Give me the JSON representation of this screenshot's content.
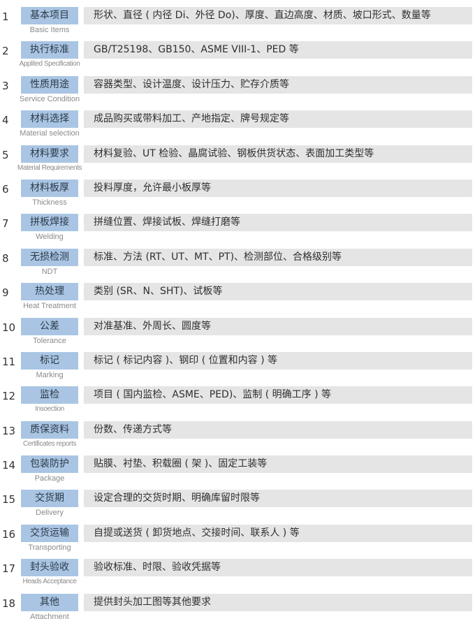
{
  "items": [
    {
      "num": "1",
      "label": "基本项目",
      "en": "Basic Items",
      "desc": "形状、直径 ( 内径 Di、外径 Do)、厚度、直边高度、材质、坡口形式、数量等"
    },
    {
      "num": "2",
      "label": "执行标准",
      "en": "Applited Specification",
      "desc": "GB/T25198、GB150、ASME VIII-1、PED 等"
    },
    {
      "num": "3",
      "label": "性质用途",
      "en": "Service Condition",
      "desc": "容器类型、设计温度、设计压力、贮存介质等"
    },
    {
      "num": "4",
      "label": "材料选择",
      "en": "Material selection",
      "desc": "成品购买或带料加工、产地指定、牌号规定等"
    },
    {
      "num": "5",
      "label": "材料要求",
      "en": "Material Requirements",
      "desc": "材料复验、UT 检验、晶腐试验、钢板供货状态、表面加工类型等"
    },
    {
      "num": "6",
      "label": "材料板厚",
      "en": "Thickness",
      "desc": "投料厚度，允许最小板厚等"
    },
    {
      "num": "7",
      "label": "拼板焊接",
      "en": "Welding",
      "desc": "拼缝位置、焊接试板、焊缝打磨等"
    },
    {
      "num": "8",
      "label": "无损检测",
      "en": "NDT",
      "desc": "标准、方法 (RT、UT、MT、PT)、检测部位、合格级别等"
    },
    {
      "num": "9",
      "label": "热处理",
      "en": "Heat Treatment",
      "desc": "类别 (SR、N、SHT)、试板等"
    },
    {
      "num": "10",
      "label": "公差",
      "en": "Tolerance",
      "desc": "对准基准、外周长、圆度等"
    },
    {
      "num": "11",
      "label": "标记",
      "en": "Marking",
      "desc": "标记 ( 标记内容 )、钢印 ( 位置和内容 ) 等"
    },
    {
      "num": "12",
      "label": "监检",
      "en": "Insoection",
      "desc": "项目 ( 国内监检、ASME、PED)、监制 ( 明确工序 ) 等"
    },
    {
      "num": "13",
      "label": "质保资料",
      "en": "Certificates reports",
      "desc": "份数、传递方式等"
    },
    {
      "num": "14",
      "label": "包装防护",
      "en": "Package",
      "desc": "贴膜、衬垫、积载圈 ( 架 )、固定工装等"
    },
    {
      "num": "15",
      "label": "交货期",
      "en": "Delivery",
      "desc": "设定合理的交货时期、明确库留时限等"
    },
    {
      "num": "16",
      "label": "交货运输",
      "en": "Transporting",
      "desc": "自提或送货 ( 卸货地点、交接时间、联系人 ) 等"
    },
    {
      "num": "17",
      "label": "封头验收",
      "en": "Heads Acceptance",
      "desc": "验收标准、时限、验收凭据等"
    },
    {
      "num": "18",
      "label": "其他",
      "en": "Attachment",
      "desc": "提供封头加工图等其他要求"
    }
  ]
}
